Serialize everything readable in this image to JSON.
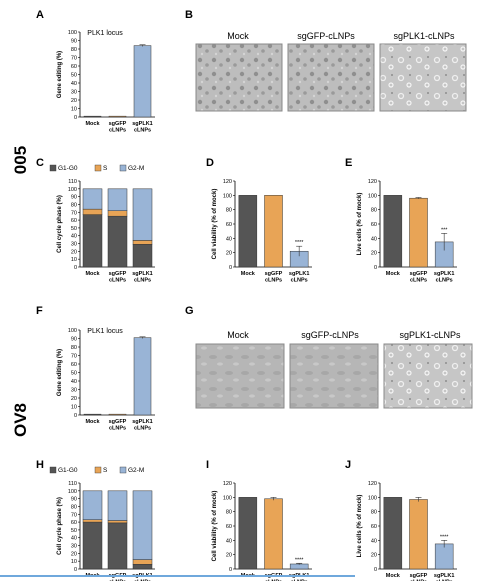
{
  "colors": {
    "mock": "#555555",
    "sggfp": "#e8a456",
    "sgplk1": "#99b4d6",
    "g1": "#555555",
    "s": "#e8a456",
    "g2m": "#99b4d6"
  },
  "sections": {
    "top": "005",
    "bottom": "OV8"
  },
  "panels": {
    "A": {
      "letter": "A",
      "subtitle": "PLK1 locus"
    },
    "B": {
      "letter": "B",
      "labels": [
        "Mock",
        "sgGFP-cLNPs",
        "sgPLK1-cLNPs"
      ]
    },
    "C": {
      "letter": "C"
    },
    "D": {
      "letter": "D"
    },
    "E": {
      "letter": "E"
    },
    "F": {
      "letter": "F",
      "subtitle": "PLK1 locus"
    },
    "G": {
      "letter": "G",
      "labels": [
        "Mock",
        "sgGFP-cLNPs",
        "sgPLK1-cLNPs"
      ]
    },
    "H": {
      "letter": "H"
    },
    "I": {
      "letter": "I"
    },
    "J": {
      "letter": "J"
    }
  },
  "chart_data": [
    {
      "id": "A",
      "type": "bar",
      "categories": [
        "Mock",
        "sgGFP\ncLNPs",
        "sgPLK1\ncLNPs"
      ],
      "values": [
        1,
        1,
        84
      ],
      "errors": [
        0,
        0,
        1
      ],
      "ylabel": "Gene editing (%)",
      "ylim": [
        0,
        100
      ],
      "yticks": [
        0,
        10,
        20,
        30,
        40,
        50,
        60,
        70,
        80,
        90,
        100
      ],
      "title": "PLK1 locus"
    },
    {
      "id": "C",
      "type": "bar",
      "stacked": true,
      "categories": [
        "Mock",
        "sgGFP\ncLNPs",
        "sgPLK1\ncLNPs"
      ],
      "legend": [
        "G1-G0",
        "S",
        "G2-M"
      ],
      "series": [
        {
          "name": "G1-G0",
          "values": [
            67,
            65,
            29
          ]
        },
        {
          "name": "S",
          "values": [
            7,
            7,
            5
          ]
        },
        {
          "name": "G2-M",
          "values": [
            26,
            28,
            66
          ]
        }
      ],
      "ylabel": "Cell cycle phase (%)",
      "ylim": [
        0,
        110
      ],
      "yticks": [
        0,
        10,
        20,
        30,
        40,
        50,
        60,
        70,
        80,
        90,
        100,
        110
      ]
    },
    {
      "id": "D",
      "type": "bar",
      "categories": [
        "Mock",
        "sgGFP\ncLNPs",
        "sgPLK1\ncLNPs"
      ],
      "values": [
        100,
        100,
        22
      ],
      "errors": [
        0,
        0,
        7
      ],
      "annotations": [
        "",
        "",
        "****"
      ],
      "ylabel": "Cell viability (% of mock)",
      "ylim": [
        0,
        120
      ],
      "yticks": [
        0,
        20,
        40,
        60,
        80,
        100,
        120
      ]
    },
    {
      "id": "E",
      "type": "bar",
      "categories": [
        "Mock",
        "sgGFP\ncLNPs",
        "sgPLK1\ncLNPs"
      ],
      "values": [
        100,
        96,
        35
      ],
      "errors": [
        0,
        1,
        12
      ],
      "annotations": [
        "",
        "",
        "***"
      ],
      "ylabel": "Live cells (% of mock)",
      "ylim": [
        0,
        120
      ],
      "yticks": [
        0,
        20,
        40,
        60,
        80,
        100,
        120
      ]
    },
    {
      "id": "F",
      "type": "bar",
      "categories": [
        "Mock",
        "sgGFP\ncLNPs",
        "sgPLK1\ncLNPs"
      ],
      "values": [
        1,
        1,
        91
      ],
      "errors": [
        0,
        0,
        1
      ],
      "ylabel": "Gene editing (%)",
      "ylim": [
        0,
        100
      ],
      "yticks": [
        0,
        10,
        20,
        30,
        40,
        50,
        60,
        70,
        80,
        90,
        100
      ],
      "title": "PLK1 locus"
    },
    {
      "id": "H",
      "type": "bar",
      "stacked": true,
      "categories": [
        "Mock",
        "sgGFP\ncLNPs",
        "sgPLK1\ncLNPs"
      ],
      "legend": [
        "G1-G0",
        "S",
        "G2-M"
      ],
      "series": [
        {
          "name": "G1-G0",
          "values": [
            60,
            59,
            6
          ]
        },
        {
          "name": "S",
          "values": [
            3,
            3,
            6
          ]
        },
        {
          "name": "G2-M",
          "values": [
            37,
            38,
            88
          ]
        }
      ],
      "ylabel": "Cell cycle phase (%)",
      "ylim": [
        0,
        110
      ],
      "yticks": [
        0,
        10,
        20,
        30,
        40,
        50,
        60,
        70,
        80,
        90,
        100,
        110
      ]
    },
    {
      "id": "I",
      "type": "bar",
      "categories": [
        "Mock",
        "sgGFP\ncLNPs",
        "sgPLK1\ncLNPs"
      ],
      "values": [
        100,
        98,
        7
      ],
      "errors": [
        0,
        2,
        1
      ],
      "annotations": [
        "",
        "",
        "****"
      ],
      "ylabel": "Cell viability (% of mock)",
      "ylim": [
        0,
        120
      ],
      "yticks": [
        0,
        20,
        40,
        60,
        80,
        100,
        120
      ]
    },
    {
      "id": "J",
      "type": "bar",
      "categories": [
        "Mock",
        "sgGFP\ncLNPs",
        "sgPLK1\ncLNPs"
      ],
      "values": [
        100,
        97,
        35
      ],
      "errors": [
        0,
        3,
        5
      ],
      "annotations": [
        "",
        "",
        "****"
      ],
      "ylabel": "Live cells (% of mock)",
      "ylim": [
        0,
        120
      ],
      "yticks": [
        0,
        20,
        40,
        60,
        80,
        100,
        120
      ]
    }
  ]
}
